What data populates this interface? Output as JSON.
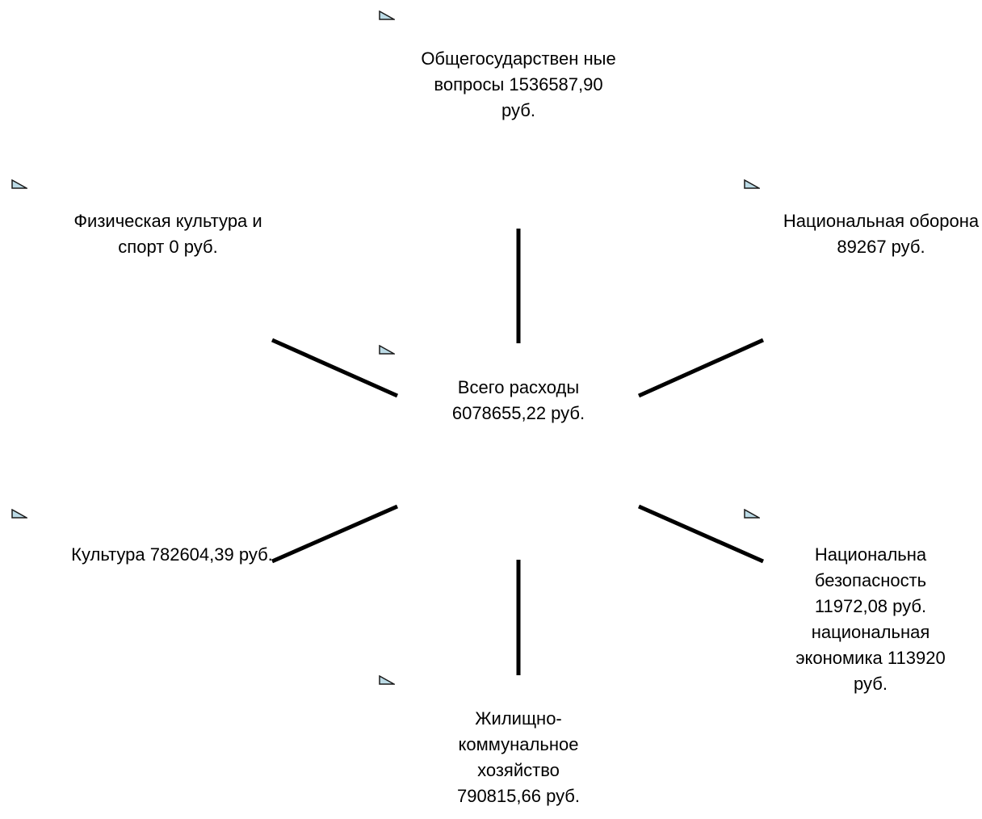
{
  "diagram": {
    "center": {
      "label": "Всего расходы 6078655,22 руб."
    },
    "nodes": {
      "top": {
        "label": "Общегосударствен ные вопросы 1536587,90 руб."
      },
      "top_right": {
        "label": "Национальная оборона 89267 руб."
      },
      "bottom_right": {
        "label": "Национальна безопасность 11972,08 руб. национальная экономика 113920 руб."
      },
      "bottom": {
        "label": "Жилищно-коммунальное хозяйство 790815,66 руб."
      },
      "bottom_left": {
        "label": "Культура 782604,39 руб."
      },
      "top_left": {
        "label": "Физическая культура и спорт 0 руб."
      }
    },
    "colors": {
      "connector": "#000000",
      "marker_fill": "#bcdbe6",
      "marker_stroke": "#1a1a1a"
    }
  }
}
